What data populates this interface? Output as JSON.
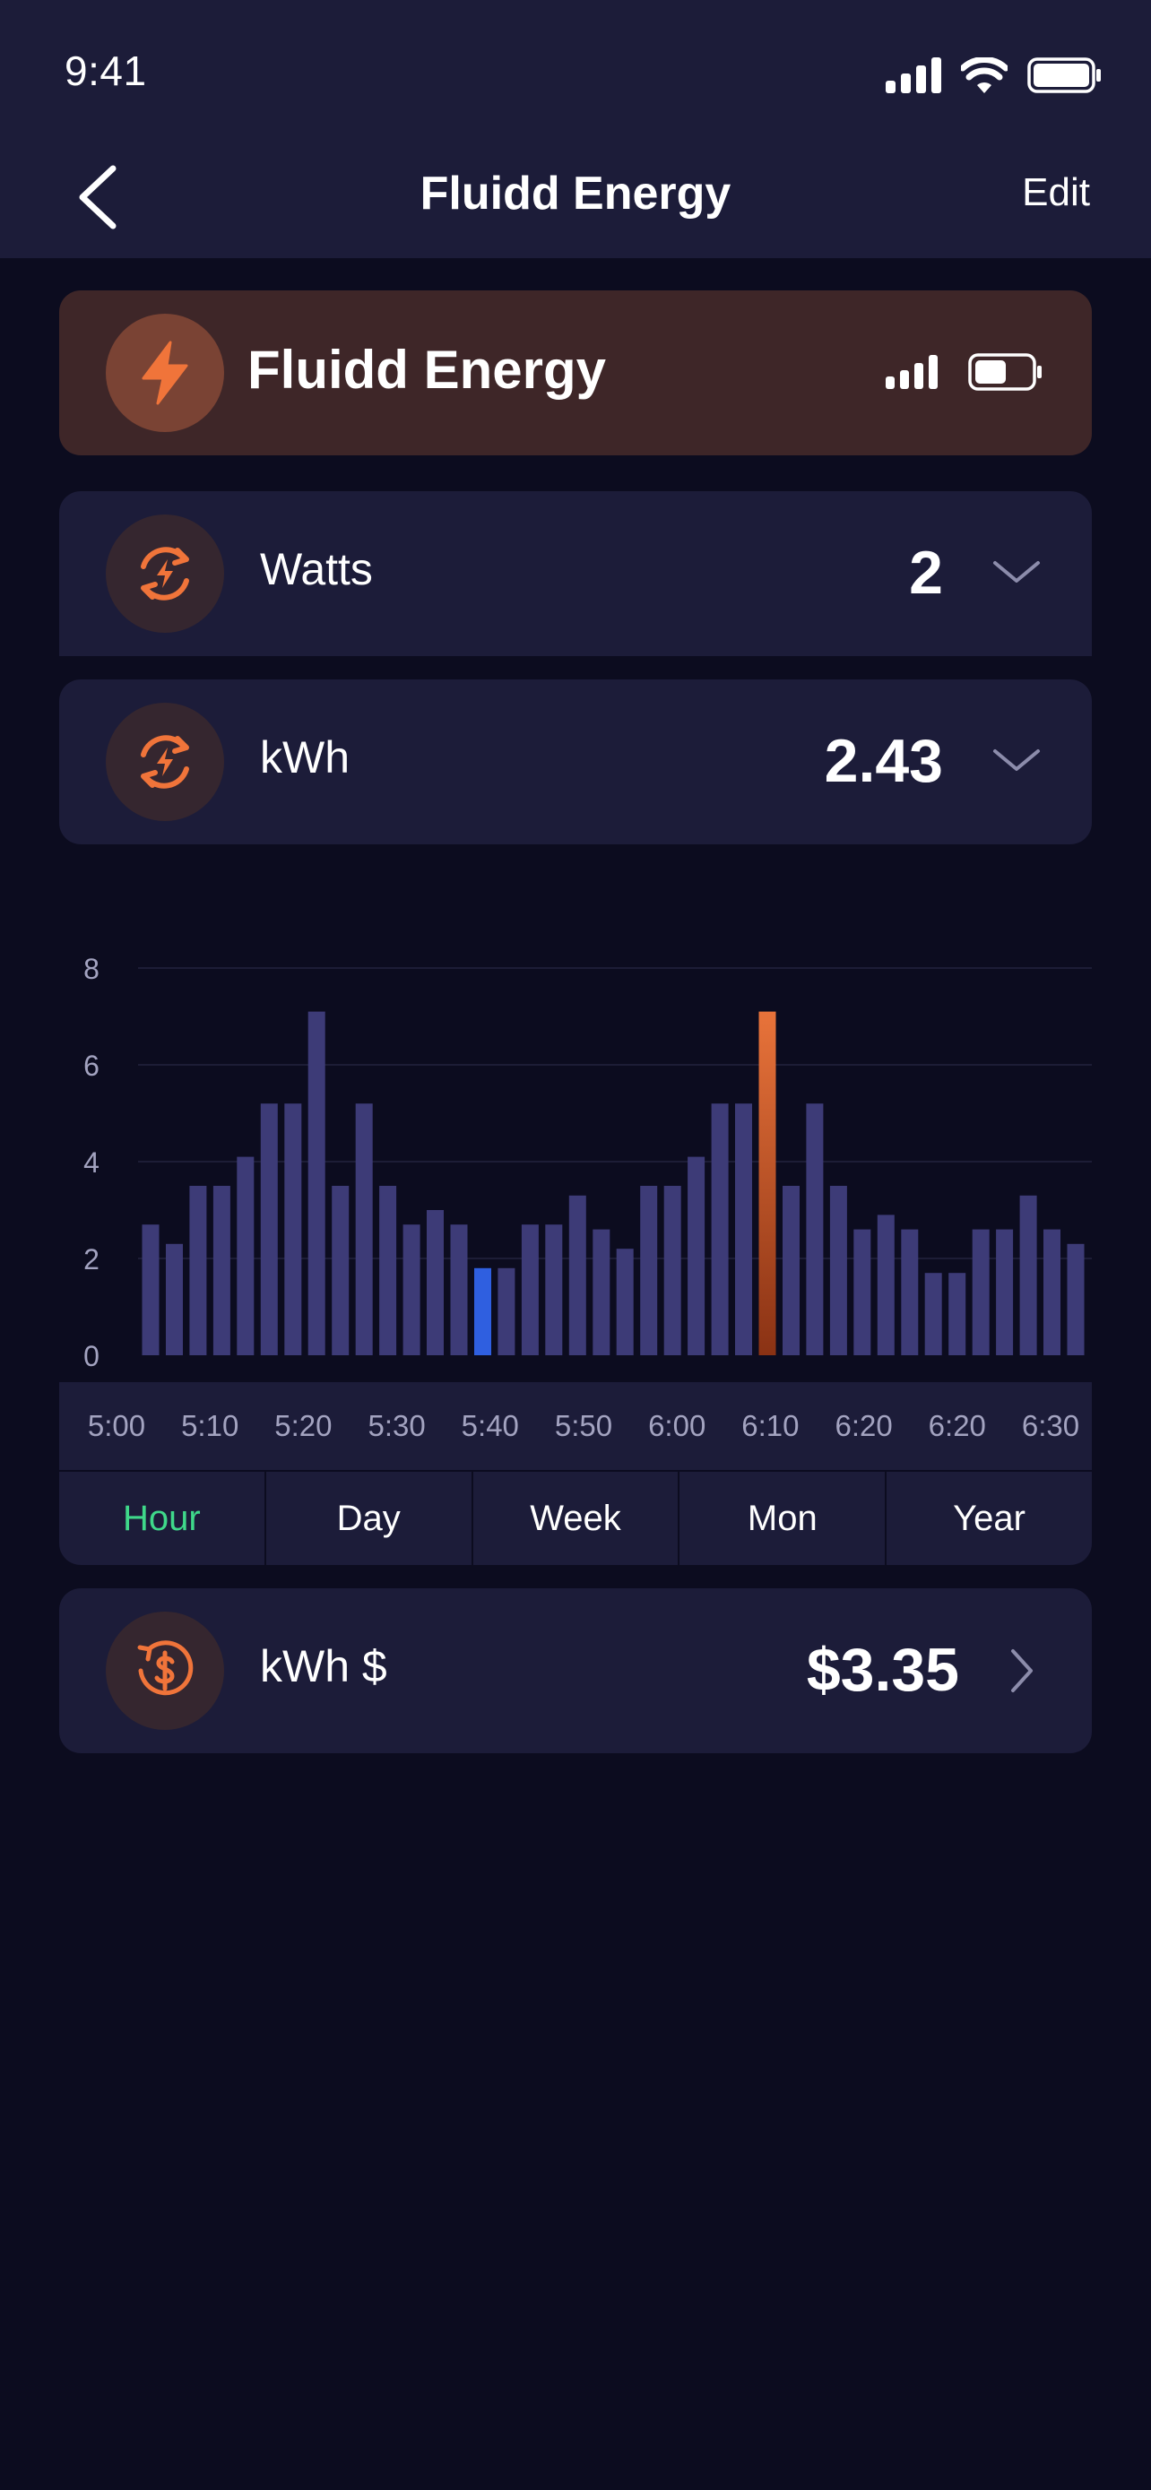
{
  "status_bar": {
    "time": "9:41",
    "icons": [
      "signal-icon",
      "wifi-icon",
      "battery-icon"
    ]
  },
  "nav": {
    "title": "Fluidd Energy",
    "edit_label": "Edit",
    "back_icon": "chevron-left-icon"
  },
  "device": {
    "name": "Fluidd Energy",
    "icon": "lightning-icon",
    "signal_icon": "signal-icon",
    "battery_icon": "battery-low-icon"
  },
  "metrics": [
    {
      "label": "Watts",
      "value": "2",
      "icon": "energy-cycle-icon"
    },
    {
      "label": "kWh",
      "value": "2.43",
      "icon": "energy-cycle-icon"
    }
  ],
  "cost": {
    "label": "kWh $",
    "value": "$3.35",
    "icon": "dollar-cycle-icon"
  },
  "tabs": [
    {
      "label": "Hour",
      "active": true
    },
    {
      "label": "Day",
      "active": false
    },
    {
      "label": "Week",
      "active": false
    },
    {
      "label": "Mon",
      "active": false
    },
    {
      "label": "Year",
      "active": false
    }
  ],
  "colors": {
    "accent_orange": "#e8733a",
    "bar_default": "#3d3b77",
    "bar_highlight_blue": "#2f5fe0",
    "tab_active": "#3fd88a"
  },
  "chart_data": {
    "type": "bar",
    "ylim": [
      0,
      8
    ],
    "yticks": [
      "0",
      "2",
      "4",
      "6",
      "8"
    ],
    "xtick_labels": [
      "5:00",
      "5:10",
      "5:20",
      "5:30",
      "5:40",
      "5:50",
      "6:00",
      "6:10",
      "6:20",
      "6:20",
      "6:30"
    ],
    "values": [
      2.7,
      2.3,
      3.5,
      3.5,
      4.1,
      5.2,
      5.2,
      7.1,
      3.5,
      5.2,
      3.5,
      2.7,
      3.0,
      2.7,
      1.8,
      1.8,
      2.7,
      2.7,
      3.3,
      2.6,
      2.2,
      3.5,
      3.5,
      4.1,
      5.2,
      5.2,
      7.1,
      3.5,
      5.2,
      3.5,
      2.6,
      2.9,
      2.6,
      1.7,
      1.7,
      2.6,
      2.6,
      3.3,
      2.6,
      2.3
    ],
    "highlight_blue_index": 14,
    "highlight_orange_index": 26,
    "grid": true
  }
}
